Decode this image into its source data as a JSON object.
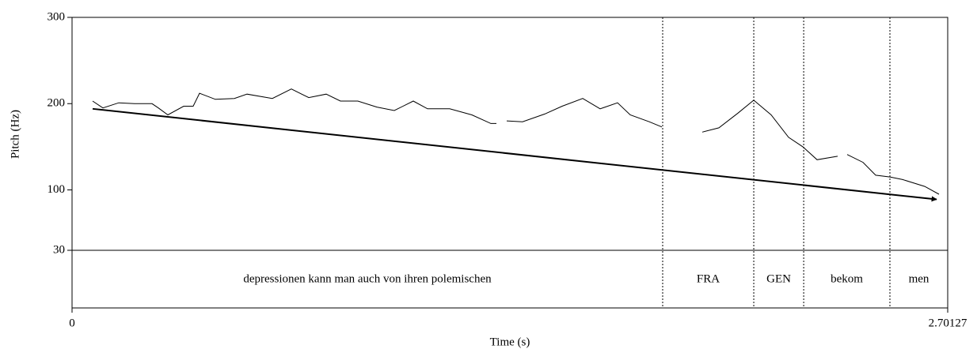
{
  "chart_data": {
    "type": "line",
    "xlabel": "Time (s)",
    "ylabel": "Pitch (Hz)",
    "xlim": [
      0,
      2.70127
    ],
    "xticks": [
      0,
      2.70127
    ],
    "ylim": [
      30,
      300
    ],
    "yticks": [
      30,
      100,
      200,
      300
    ],
    "series": [
      {
        "color": "#000000",
        "x": [
          0.0635,
          0.0953,
          0.1441,
          0.193,
          0.2467,
          0.2662,
          0.2955,
          0.3444,
          0.3737,
          0.3932,
          0.4421,
          0.5007,
          0.5398,
          0.6179,
          0.6765,
          0.7303,
          0.784,
          0.828,
          0.8817,
          0.9403,
          0.9941,
          1.0527,
          1.0966,
          1.165,
          1.2334,
          1.292,
          1.3091,
          1.325,
          1.3409,
          1.3897,
          1.4581,
          1.5118,
          1.5753,
          1.6291,
          1.6828,
          1.7219,
          1.7805,
          1.8196,
          1.88,
          1.9442,
          1.9954,
          2.0541,
          2.1029,
          2.1566,
          2.2104,
          2.2543,
          2.2983,
          2.3618,
          2.375,
          2.3911,
          2.44,
          2.479,
          2.523,
          2.5621,
          2.6305,
          2.6744
        ],
        "values": [
          203,
          195,
          201,
          200,
          200,
          195,
          187,
          197,
          197,
          212,
          205,
          206,
          211,
          206,
          217,
          207,
          211,
          203,
          203,
          196,
          192,
          203,
          194,
          194,
          187,
          177,
          177,
          null,
          180,
          179,
          188,
          197,
          206,
          194,
          201,
          187,
          179,
          173,
          null,
          167,
          172,
          189,
          204,
          187,
          161,
          150,
          135,
          139,
          null,
          141,
          132,
          117,
          115,
          112,
          104,
          95
        ]
      }
    ],
    "arrow": {
      "x": [
        0.0635,
        2.667
      ],
      "y": [
        194,
        89
      ]
    },
    "intervals": [
      {
        "text": "depressionen kann man auch von ihren polemischen",
        "start": 0,
        "end": 1.822
      },
      {
        "text": "FRA",
        "start": 1.822,
        "end": 2.103
      },
      {
        "text": "GEN",
        "start": 2.103,
        "end": 2.257
      },
      {
        "text": "bekom",
        "start": 2.257,
        "end": 2.523
      },
      {
        "text": "men",
        "start": 2.523,
        "end": 2.70127
      }
    ]
  }
}
